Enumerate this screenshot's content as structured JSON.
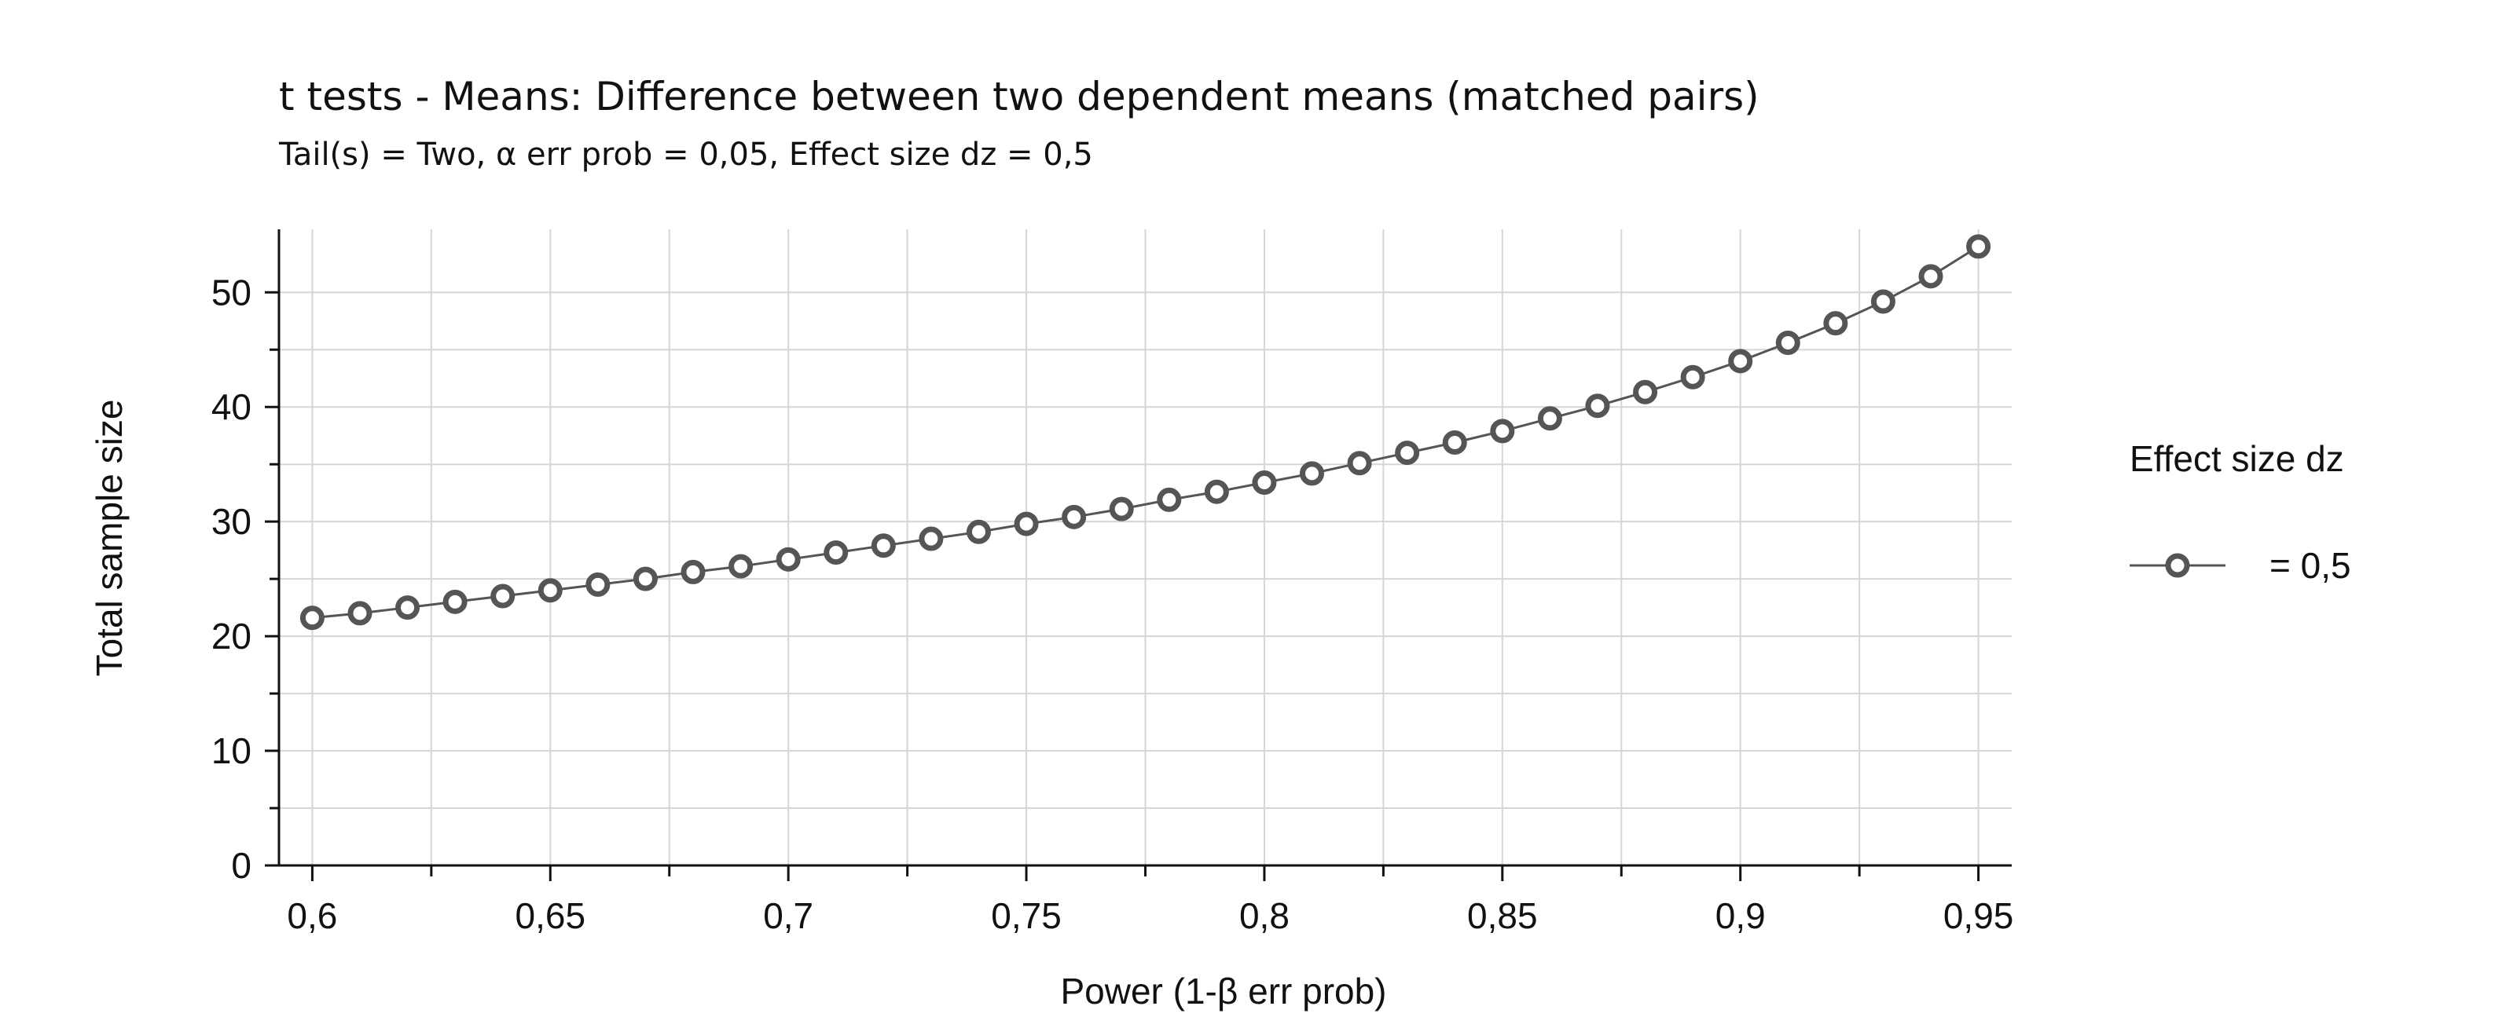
{
  "title": "t tests - Means: Difference between two dependent means (matched pairs)",
  "subtitle": "Tail(s) = Two, α err prob = 0,05, Effect size dz = 0,5",
  "legend": {
    "title": "Effect size dz",
    "entries": [
      {
        "label": "= 0,5",
        "color": "#555555"
      }
    ]
  },
  "chart_data": {
    "type": "line",
    "title": "t tests - Means: Difference between two dependent means (matched pairs)",
    "subtitle": "Tail(s) = Two, α err prob = 0,05, Effect size dz = 0,5",
    "xlabel": "Power (1-β err prob)",
    "ylabel": "Total sample size",
    "xlim": [
      0.593,
      0.957
    ],
    "ylim": [
      0,
      55.5
    ],
    "x_major_ticks": [
      0.6,
      0.65,
      0.7,
      0.75,
      0.8,
      0.85,
      0.9,
      0.95
    ],
    "x_tick_labels": [
      "0,6",
      "0,65",
      "0,7",
      "0,75",
      "0,8",
      "0,85",
      "0,9",
      "0,95"
    ],
    "x_minor_ticks": [
      0.625,
      0.675,
      0.725,
      0.775,
      0.825,
      0.875,
      0.925
    ],
    "y_major_ticks": [
      0,
      10,
      20,
      30,
      40,
      50
    ],
    "y_tick_labels": [
      "0",
      "10",
      "20",
      "30",
      "40",
      "50"
    ],
    "y_minor_ticks": [
      5,
      15,
      25,
      35,
      45
    ],
    "grid": true,
    "legend_position": "right",
    "series": [
      {
        "name": "= 0,5",
        "color": "#555555",
        "marker": "open-circle",
        "x": [
          0.6,
          0.61,
          0.62,
          0.63,
          0.64,
          0.65,
          0.66,
          0.67,
          0.68,
          0.69,
          0.7,
          0.71,
          0.72,
          0.73,
          0.74,
          0.75,
          0.76,
          0.77,
          0.78,
          0.79,
          0.8,
          0.81,
          0.82,
          0.83,
          0.84,
          0.85,
          0.86,
          0.87,
          0.88,
          0.89,
          0.9,
          0.91,
          0.92,
          0.93,
          0.94,
          0.95
        ],
        "values": [
          21.6,
          22,
          22.5,
          23,
          23.5,
          24,
          24.5,
          25,
          25.6,
          26.1,
          26.7,
          27.3,
          27.9,
          28.5,
          29.1,
          29.8,
          30.4,
          31.1,
          31.9,
          32.6,
          33.4,
          34.2,
          35.1,
          36,
          36.9,
          37.9,
          39,
          40.1,
          41.3,
          42.6,
          44,
          45.6,
          47.3,
          49.2,
          51.4,
          54
        ]
      }
    ]
  }
}
